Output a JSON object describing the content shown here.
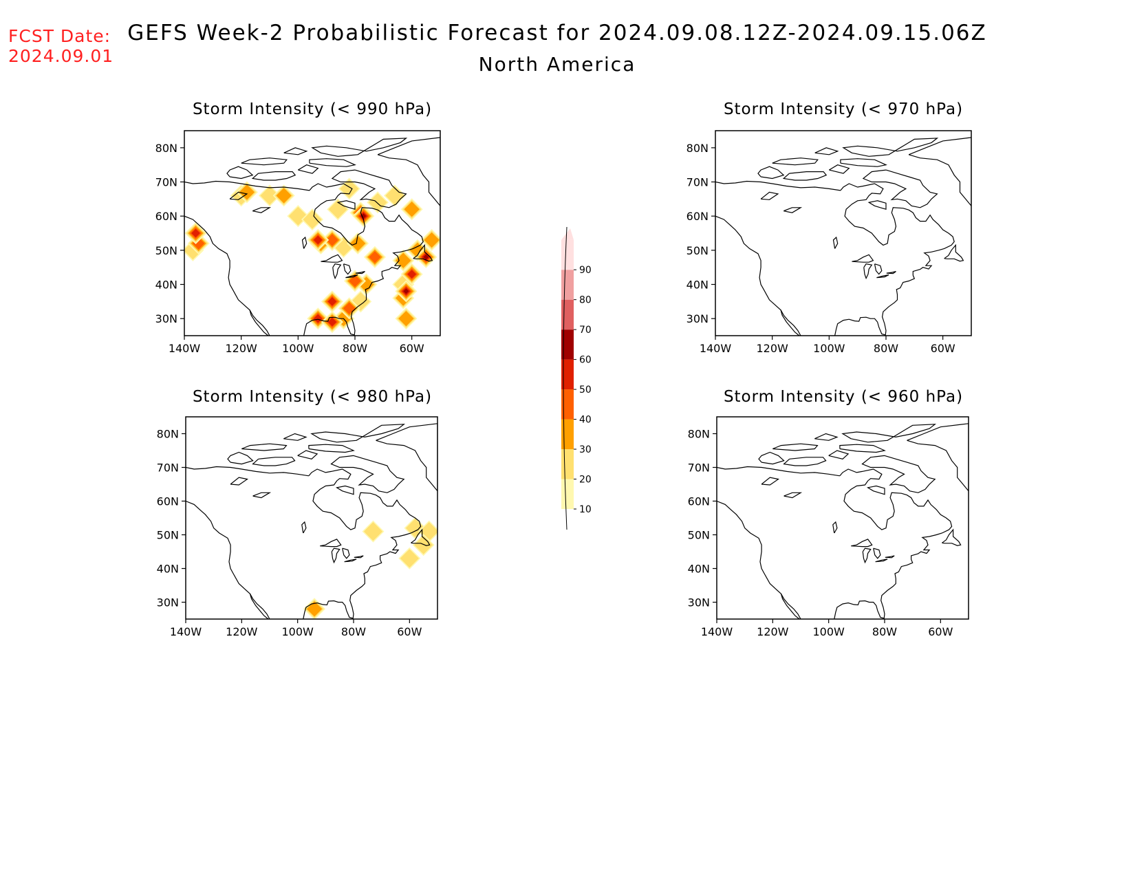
{
  "header": {
    "fcst_label": "FCST Date:",
    "fcst_date": "2024.09.01",
    "title": "GEFS Week-2 Probabilistic Forecast for 2024.09.08.12Z-2024.09.15.06Z",
    "subtitle": "North America"
  },
  "colors": {
    "fcst_text": "#ff2020",
    "levels": [
      "#fff8b0",
      "#ffe070",
      "#ffa000",
      "#ff6000",
      "#e02000",
      "#a00000",
      "#e06060",
      "#f0a0a0",
      "#ffe0e0"
    ]
  },
  "colorbar": {
    "levels": [
      10,
      20,
      30,
      40,
      50,
      60,
      70,
      80,
      90
    ],
    "labels": [
      "10",
      "20",
      "30",
      "40",
      "50",
      "60",
      "70",
      "80",
      "90"
    ]
  },
  "axes": {
    "lon_ticks": [
      "140W",
      "120W",
      "100W",
      "80W",
      "60W"
    ],
    "lat_ticks": [
      "80N",
      "70N",
      "60N",
      "50N",
      "40N",
      "30N"
    ]
  },
  "panels": [
    {
      "id": "p990",
      "title": "Storm Intensity (< 990 hPa)",
      "blobs": [
        {
          "lon": -137,
          "lat": 50,
          "level": 20
        },
        {
          "lon": -135,
          "lat": 52,
          "level": 40
        },
        {
          "lon": -136,
          "lat": 55,
          "level": 50
        },
        {
          "lon": -120,
          "lat": 66,
          "level": 20
        },
        {
          "lon": -118,
          "lat": 67,
          "level": 30
        },
        {
          "lon": -110,
          "lat": 66,
          "level": 20
        },
        {
          "lon": -105,
          "lat": 66,
          "level": 30
        },
        {
          "lon": -100,
          "lat": 60,
          "level": 20
        },
        {
          "lon": -95,
          "lat": 59,
          "level": 20
        },
        {
          "lon": -92,
          "lat": 52,
          "level": 30
        },
        {
          "lon": -86,
          "lat": 62,
          "level": 20
        },
        {
          "lon": -82,
          "lat": 68,
          "level": 20
        },
        {
          "lon": -78,
          "lat": 61,
          "level": 40
        },
        {
          "lon": -77,
          "lat": 60,
          "level": 60
        },
        {
          "lon": -72,
          "lat": 64,
          "level": 20
        },
        {
          "lon": -66,
          "lat": 66,
          "level": 20
        },
        {
          "lon": -60,
          "lat": 62,
          "level": 30
        },
        {
          "lon": -93,
          "lat": 53,
          "level": 50
        },
        {
          "lon": -88,
          "lat": 53,
          "level": 40
        },
        {
          "lon": -84,
          "lat": 51,
          "level": 20
        },
        {
          "lon": -79,
          "lat": 52,
          "level": 30
        },
        {
          "lon": -73,
          "lat": 48,
          "level": 40
        },
        {
          "lon": -63,
          "lat": 47,
          "level": 30
        },
        {
          "lon": -58,
          "lat": 50,
          "level": 30
        },
        {
          "lon": -55,
          "lat": 48,
          "level": 60
        },
        {
          "lon": -53,
          "lat": 53,
          "level": 30
        },
        {
          "lon": -80,
          "lat": 41,
          "level": 40
        },
        {
          "lon": -76,
          "lat": 40,
          "level": 30
        },
        {
          "lon": -63,
          "lat": 40,
          "level": 20
        },
        {
          "lon": -60,
          "lat": 43,
          "level": 50
        },
        {
          "lon": -62,
          "lat": 38,
          "level": 70
        },
        {
          "lon": -63,
          "lat": 36,
          "level": 30
        },
        {
          "lon": -88,
          "lat": 35,
          "level": 50
        },
        {
          "lon": -82,
          "lat": 33,
          "level": 40
        },
        {
          "lon": -93,
          "lat": 30,
          "level": 50
        },
        {
          "lon": -88,
          "lat": 29,
          "level": 50
        },
        {
          "lon": -84,
          "lat": 30,
          "level": 30
        },
        {
          "lon": -78,
          "lat": 35,
          "level": 20
        },
        {
          "lon": -62,
          "lat": 30,
          "level": 30
        }
      ]
    },
    {
      "id": "p970",
      "title": "Storm Intensity (< 970 hPa)",
      "blobs": []
    },
    {
      "id": "p980",
      "title": "Storm Intensity (< 980 hPa)",
      "blobs": [
        {
          "lon": -58,
          "lat": 52,
          "level": 20
        },
        {
          "lon": -53,
          "lat": 51,
          "level": 20
        },
        {
          "lon": -55,
          "lat": 47,
          "level": 20
        },
        {
          "lon": -73,
          "lat": 51,
          "level": 20
        },
        {
          "lon": -60,
          "lat": 43,
          "level": 20
        },
        {
          "lon": -94,
          "lat": 28,
          "level": 30
        }
      ]
    },
    {
      "id": "p960",
      "title": "Storm Intensity (< 960 hPa)",
      "blobs": []
    }
  ]
}
